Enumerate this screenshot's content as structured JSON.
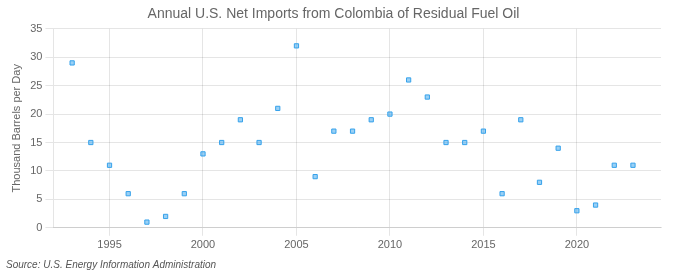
{
  "chart_data": {
    "type": "scatter",
    "title": "Annual U.S. Net Imports from Colombia of Residual Fuel Oil",
    "ylabel": "Thousand Barrels per Day",
    "annotations": [
      "Source: U.S. Energy Information Administration"
    ],
    "x": [
      1993,
      1994,
      1995,
      1996,
      1997,
      1998,
      1999,
      2000,
      2001,
      2002,
      2003,
      2004,
      2005,
      2006,
      2007,
      2008,
      2009,
      2010,
      2011,
      2012,
      2013,
      2014,
      2015,
      2016,
      2017,
      2018,
      2019,
      2020,
      2021,
      2022,
      2023
    ],
    "values": [
      29,
      15,
      11,
      6,
      1,
      2,
      6,
      13,
      15,
      19,
      15,
      21,
      32,
      9,
      17,
      17,
      19,
      20,
      26,
      23,
      15,
      15,
      17,
      6,
      19,
      8,
      14,
      3,
      4,
      11,
      11
    ],
    "marker": "square",
    "xlim": [
      1992,
      2024.5
    ],
    "xticks": [
      1995,
      2000,
      2005,
      2010,
      2015,
      2020
    ],
    "ylim": [
      0,
      35
    ],
    "yticks": [
      0,
      5,
      10,
      15,
      20,
      25,
      30,
      35
    ],
    "grid": true
  }
}
